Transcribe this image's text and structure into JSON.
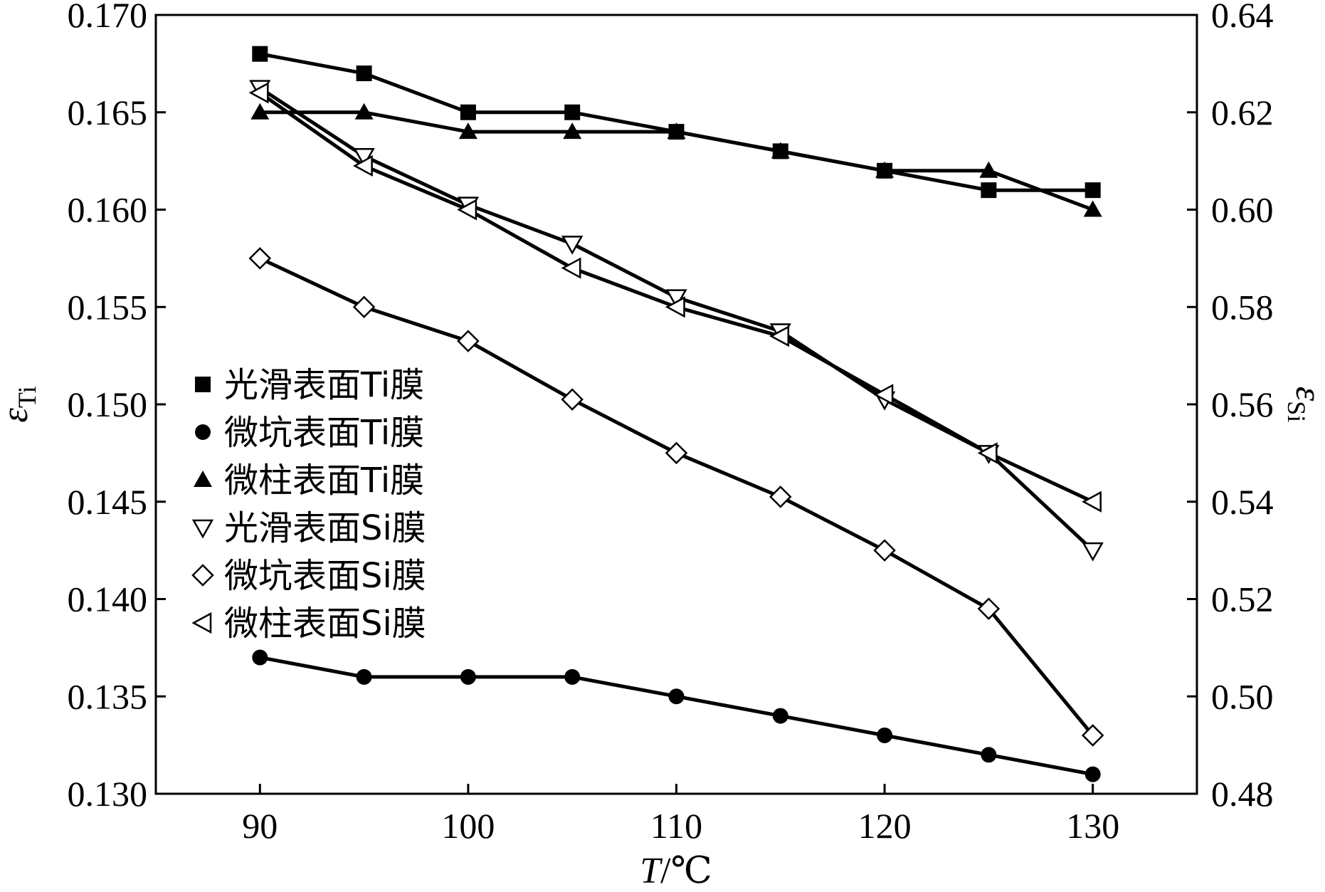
{
  "chart_data": {
    "type": "line",
    "title": "",
    "xlabel": {
      "var": "T",
      "unit": "/℃"
    },
    "ylabel_left": {
      "symbol": "ε",
      "subscript": "Ti"
    },
    "ylabel_right": {
      "symbol": "ε",
      "subscript": "Si"
    },
    "xlim": [
      85,
      135
    ],
    "ylim_left": [
      0.13,
      0.17
    ],
    "ylim_right": [
      0.48,
      0.64
    ],
    "x_ticks": [
      "90",
      "100",
      "110",
      "120",
      "130"
    ],
    "y_left_ticks": [
      "0.130",
      "0.135",
      "0.140",
      "0.145",
      "0.150",
      "0.155",
      "0.160",
      "0.165",
      "0.170"
    ],
    "y_right_ticks": [
      "0.48",
      "0.50",
      "0.52",
      "0.54",
      "0.56",
      "0.58",
      "0.60",
      "0.62",
      "0.64"
    ],
    "grid": false,
    "legend_position": "middle-left",
    "x": [
      90,
      95,
      100,
      105,
      110,
      115,
      120,
      125,
      130
    ],
    "series": [
      {
        "name": "光滑表面Ti膜",
        "axis": "left",
        "marker": "square-filled",
        "values": [
          0.168,
          0.167,
          0.165,
          0.165,
          0.164,
          0.163,
          0.162,
          0.161,
          0.161
        ]
      },
      {
        "name": "微坑表面Ti膜",
        "axis": "left",
        "marker": "circle-filled",
        "values": [
          0.137,
          0.136,
          0.136,
          0.136,
          0.135,
          0.134,
          0.133,
          0.132,
          0.131
        ]
      },
      {
        "name": "微柱表面Ti膜",
        "axis": "left",
        "marker": "triangle-up-filled",
        "values": [
          0.165,
          0.165,
          0.164,
          0.164,
          0.164,
          0.163,
          0.162,
          0.162,
          0.16
        ]
      },
      {
        "name": "光滑表面Si膜",
        "axis": "right",
        "marker": "triangle-down-open",
        "values": [
          0.625,
          0.611,
          0.601,
          0.593,
          0.582,
          0.575,
          0.561,
          0.55,
          0.53
        ]
      },
      {
        "name": "微坑表面Si膜",
        "axis": "right",
        "marker": "diamond-open",
        "values": [
          0.59,
          0.58,
          0.573,
          0.561,
          0.55,
          0.541,
          0.53,
          0.518,
          0.492
        ]
      },
      {
        "name": "微柱表面Si膜",
        "axis": "right",
        "marker": "triangle-left-open",
        "values": [
          0.624,
          0.609,
          0.6,
          0.588,
          0.58,
          0.574,
          0.562,
          0.55,
          0.54
        ]
      }
    ]
  }
}
